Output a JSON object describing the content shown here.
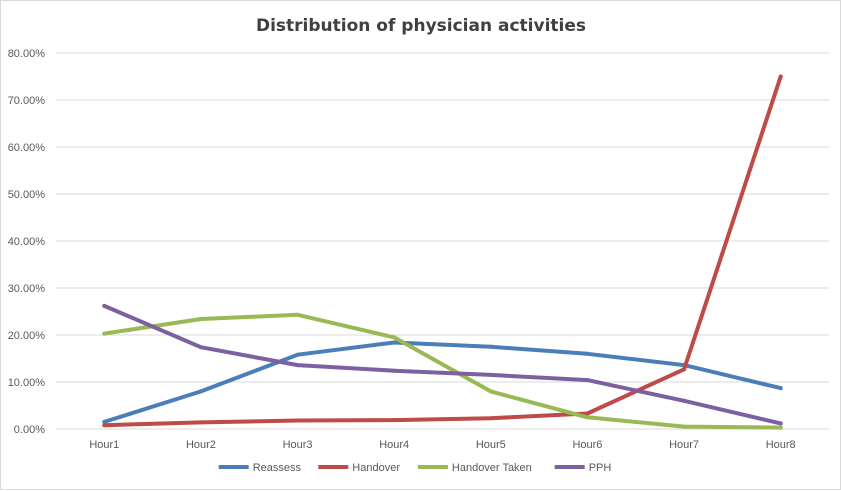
{
  "chart_data": {
    "type": "line",
    "title": "Distribution  of physician  activities",
    "categories": [
      "Hour1",
      "Hour2",
      "Hour3",
      "Hour4",
      "Hour5",
      "Hour6",
      "Hour7",
      "Hour8"
    ],
    "y_ticks": [
      "0.00%",
      "10.00%",
      "20.00%",
      "30.00%",
      "40.00%",
      "50.00%",
      "60.00%",
      "70.00%",
      "80.00%"
    ],
    "ylim": [
      0,
      0.8
    ],
    "grid": true,
    "legend_position": "bottom",
    "series": [
      {
        "name": "Reassess",
        "color": "#4a7ebb",
        "values": [
          0.015,
          0.08,
          0.158,
          0.184,
          0.175,
          0.16,
          0.136,
          0.087
        ]
      },
      {
        "name": "Handover",
        "color": "#be4b48",
        "values": [
          0.008,
          0.014,
          0.018,
          0.019,
          0.023,
          0.033,
          0.127,
          0.75
        ]
      },
      {
        "name": "Handover Taken",
        "color": "#98b954",
        "values": [
          0.203,
          0.234,
          0.243,
          0.195,
          0.08,
          0.025,
          0.005,
          0.003
        ]
      },
      {
        "name": "PPH",
        "color": "#7d60a0",
        "values": [
          0.262,
          0.174,
          0.136,
          0.124,
          0.115,
          0.104,
          0.06,
          0.012
        ]
      }
    ]
  }
}
